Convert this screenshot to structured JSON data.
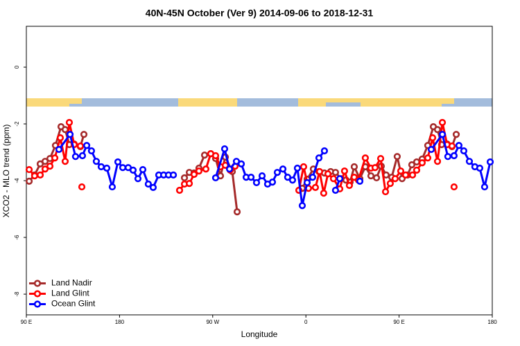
{
  "chart_data": {
    "type": "line",
    "title": "40N-45N October (Ver 9)   2014-09-06 to 2018-12-31",
    "x_label": "Longitude",
    "y_label": "XCO2 - MLO trend (ppm)",
    "xlim": [
      90,
      540
    ],
    "ylim": [
      -8.73,
      1.44
    ],
    "xticks": [
      {
        "value": 90,
        "label": "90 E"
      },
      180,
      {
        "value": 270,
        "label": "90 W"
      },
      {
        "value": 360,
        "label": "0"
      },
      {
        "value": 450,
        "label": "90 E"
      },
      {
        "value": 540,
        "label": "180"
      }
    ],
    "yticks": [
      0,
      -2,
      -4,
      -6,
      -8
    ],
    "legend": "bottomleft",
    "series": [
      {
        "name": "Land Nadir",
        "color": "#a52a2a",
        "x": [
          92.7,
          98.0,
          103.4,
          108.1,
          112.8,
          118.1,
          123.5,
          127.5,
          131.5,
          136.2,
          142.2,
          145.6,
          null,
          242.7,
          247.4,
          252.0,
          256.7,
          262.1,
          268.1,
          272.8,
          277.5,
          282.2,
          288.9,
          293.6,
          null,
          356.5,
          361.2,
          367.2,
          372.6,
          377.9,
          383.9,
          388.6,
          394.0,
          398.7,
          402.7,
          406.7,
          412.1,
          417.4,
          422.8,
          428.2,
          432.8,
          437.5,
          442.9,
          448.2,
          452.9,
          458.3,
          462.3,
          467.0,
          472.3,
          477.7,
          483.1,
          487.1,
          491.1,
          496.4,
          501.1,
          505.2
        ],
        "values": [
          -4.02,
          -3.8,
          -3.41,
          -3.32,
          -3.22,
          -2.76,
          -2.1,
          -2.2,
          -2.73,
          -2.71,
          -2.8,
          -2.37,
          null,
          -3.9,
          -3.71,
          -3.73,
          -3.56,
          -3.1,
          -3.05,
          -3.22,
          -3.83,
          -3.17,
          -3.68,
          -5.1,
          null,
          -4.27,
          -3.95,
          -3.59,
          -3.68,
          -3.73,
          -3.68,
          -3.71,
          -3.93,
          -3.98,
          -4.05,
          -3.51,
          -3.93,
          -3.51,
          -3.83,
          -3.9,
          -3.49,
          -3.8,
          -3.88,
          -3.15,
          -3.93,
          -3.8,
          -3.44,
          -3.34,
          -3.24,
          -2.76,
          -2.1,
          -2.2,
          -2.73,
          -2.71,
          -2.8,
          -2.37
        ]
      },
      {
        "name": "Land Glint",
        "color": "#ff0000",
        "x": [
          92.7,
          98.0,
          103.4,
          108.1,
          112.8,
          117.5,
          122.8,
          127.5,
          131.5,
          136.2,
          142.2,
          null,
          143.6,
          null,
          238.0,
          242.7,
          247.4,
          252.0,
          256.7,
          263.4,
          268.1,
          272.8,
          277.5,
          282.2,
          286.9,
          291.6,
          null,
          353.2,
          357.8,
          362.5,
          369.2,
          373.2,
          377.2,
          381.3,
          386.6,
          392.7,
          397.3,
          402.0,
          406.7,
          410.7,
          417.4,
          422.8,
          426.8,
          432.2,
          436.9,
          441.5,
          446.2,
          451.6,
          456.3,
          463.0,
          467.0,
          472.3,
          477.7,
          482.4,
          487.1,
          491.8,
          496.4,
          501.1,
          null,
          503.1
        ],
        "values": [
          -3.61,
          -3.83,
          -3.8,
          -3.59,
          -3.49,
          -3.2,
          -2.49,
          -3.32,
          -1.95,
          -2.73,
          -2.78,
          null,
          -4.22,
          null,
          -4.34,
          -4.12,
          -4.1,
          -3.78,
          -3.66,
          -3.59,
          -3.05,
          -3.12,
          -3.51,
          -3.46,
          -3.63,
          -3.49,
          null,
          -4.34,
          -3.51,
          -4.27,
          -4.24,
          -3.68,
          -4.44,
          -3.76,
          -3.93,
          -4.29,
          -3.66,
          -4.17,
          -3.88,
          -3.98,
          -3.2,
          -3.56,
          -3.54,
          -3.22,
          -4.39,
          -4.1,
          -3.93,
          -3.66,
          -3.8,
          -3.8,
          -3.63,
          -3.37,
          -3.2,
          -2.49,
          -3.32,
          -1.95,
          -2.73,
          -2.78,
          null,
          -4.22
        ]
      },
      {
        "name": "Ocean Glint",
        "color": "#0000ff",
        "x": [
          121.5,
          132.2,
          137.5,
          144.2,
          148.3,
          152.9,
          157.6,
          162.3,
          167.7,
          173.0,
          178.4,
          183.1,
          188.4,
          193.1,
          197.8,
          202.5,
          207.8,
          212.5,
          217.9,
          222.6,
          227.3,
          232.0,
          null,
          272.8,
          281.5,
          286.2,
          292.9,
          297.6,
          302.3,
          307.0,
          312.3,
          317.7,
          323.0,
          327.7,
          332.4,
          337.8,
          342.4,
          347.1,
          351.8,
          356.5,
          361.2,
          366.5,
          372.6,
          377.9,
          null,
          388.6,
          392.7,
          null,
          412.1,
          null,
          481.1,
          491.8,
          497.1,
          503.1,
          507.8,
          512.5,
          517.9,
          523.2,
          527.9,
          532.6,
          538.0
        ],
        "values": [
          -2.9,
          -2.37,
          -3.15,
          -3.12,
          -2.76,
          -2.95,
          -3.32,
          -3.51,
          -3.56,
          -4.22,
          -3.34,
          -3.54,
          -3.54,
          -3.63,
          -3.93,
          -3.61,
          -4.12,
          -4.24,
          -3.8,
          -3.8,
          -3.8,
          -3.8,
          null,
          -3.9,
          -2.88,
          -3.59,
          -3.32,
          -3.41,
          -3.88,
          -3.88,
          -4.07,
          -3.83,
          -4.12,
          -4.05,
          -3.71,
          -3.59,
          -3.88,
          -3.98,
          -3.56,
          -4.88,
          -4.07,
          -3.88,
          -3.2,
          -2.95,
          null,
          -4.34,
          -3.93,
          null,
          -4.02,
          null,
          -2.9,
          -2.37,
          -3.15,
          -3.12,
          -2.76,
          -2.95,
          -3.32,
          -3.51,
          -3.56,
          -4.22,
          -3.34
        ]
      }
    ]
  }
}
